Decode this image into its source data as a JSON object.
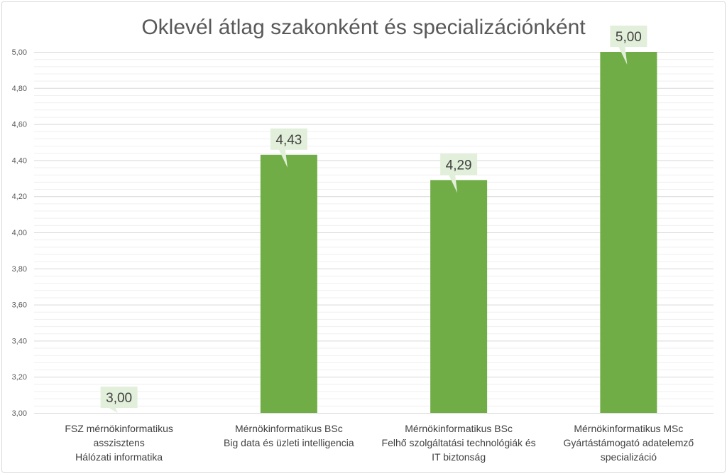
{
  "chart_data": {
    "type": "bar",
    "title": "Oklevél átlag szakonként és specializációnként",
    "categories": [
      [
        "FSZ mérnökinformatikus",
        "asszisztens",
        "Hálózati informatika"
      ],
      [
        "Mérnökinformatikus BSc",
        "Big data és üzleti intelligencia"
      ],
      [
        "Mérnökinformatikus BSc",
        "Felhő szolgáltatási technológiák és",
        "IT biztonság"
      ],
      [
        "Mérnökinformatikus  MSc",
        "Gyártástámogató adatelemző",
        "specializáció"
      ]
    ],
    "values": [
      3.0,
      4.43,
      4.29,
      5.0
    ],
    "data_labels": [
      "3,00",
      "4,43",
      "4,29",
      "5,00"
    ],
    "ylim": [
      3.0,
      5.0
    ],
    "major_step": 0.2,
    "minor_step": 0.04,
    "yticks": [
      "3,00",
      "3,20",
      "3,40",
      "3,60",
      "3,80",
      "4,00",
      "4,20",
      "4,40",
      "4,60",
      "4,80",
      "5,00"
    ],
    "xlabel": "",
    "ylabel": "",
    "grid": true,
    "legend": "none",
    "colors": {
      "bar": "#70ad47",
      "label_bg": "#e2efda",
      "grid_major": "#d9d9d9",
      "grid_minor": "#efefef"
    }
  }
}
